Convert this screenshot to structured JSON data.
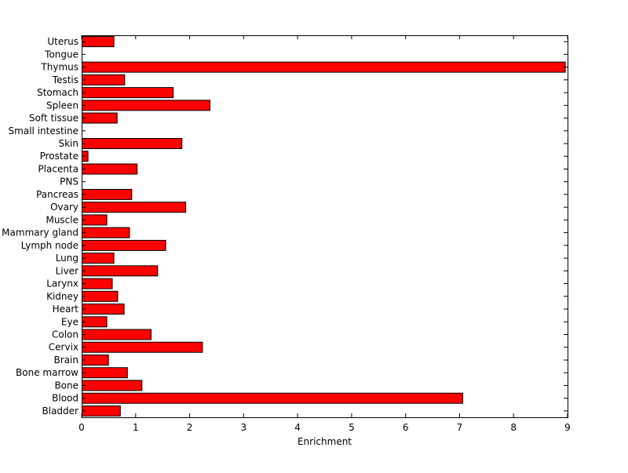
{
  "chart_data": {
    "type": "bar",
    "orientation": "horizontal",
    "title": "",
    "xlabel": "Enrichment",
    "ylabel": "",
    "xlim": [
      0,
      9
    ],
    "xticks": [
      0,
      1,
      2,
      3,
      4,
      5,
      6,
      7,
      8,
      9
    ],
    "grid": false,
    "legend": "none",
    "bar_color": "#ff0000",
    "categories": [
      "Uterus",
      "Tongue",
      "Thymus",
      "Testis",
      "Stomach",
      "Spleen",
      "Soft tissue",
      "Small intestine",
      "Skin",
      "Prostate",
      "Placenta",
      "PNS",
      "Pancreas",
      "Ovary",
      "Muscle",
      "Mammary gland",
      "Lymph node",
      "Lung",
      "Liver",
      "Larynx",
      "Kidney",
      "Heart",
      "Eye",
      "Colon",
      "Cervix",
      "Brain",
      "Bone marrow",
      "Bone",
      "Blood",
      "Bladder"
    ],
    "values": [
      0.59,
      0,
      8.95,
      0.79,
      1.69,
      2.37,
      0.65,
      0,
      1.85,
      0.11,
      1.02,
      0,
      0.92,
      1.92,
      0.46,
      0.88,
      1.55,
      0.59,
      1.4,
      0.56,
      0.66,
      0.78,
      0.46,
      1.28,
      2.23,
      0.49,
      0.84,
      1.11,
      7.05,
      0.71
    ]
  }
}
